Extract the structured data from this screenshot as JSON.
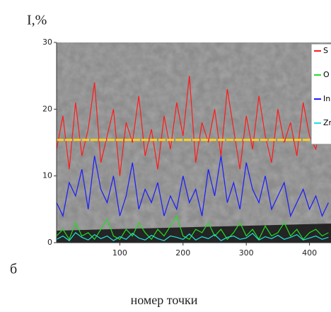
{
  "chart_data": {
    "type": "line",
    "y_label": "I,%",
    "x_label": "номер точки",
    "annotation": "б",
    "x": [
      0,
      10,
      20,
      30,
      40,
      50,
      60,
      70,
      80,
      90,
      100,
      110,
      120,
      130,
      140,
      150,
      160,
      170,
      180,
      190,
      200,
      210,
      220,
      230,
      240,
      250,
      260,
      270,
      280,
      290,
      300,
      310,
      320,
      330,
      340,
      350,
      360,
      370,
      380,
      390,
      400,
      410,
      420,
      430
    ],
    "series": [
      {
        "name": "S",
        "color": "#ff1a1a",
        "values": [
          14,
          19,
          11,
          21,
          13,
          17,
          24,
          12,
          16,
          20,
          10,
          18,
          15,
          22,
          13,
          17,
          11,
          19,
          14,
          21,
          16,
          25,
          12,
          18,
          15,
          20,
          13,
          23,
          17,
          11,
          19,
          14,
          22,
          16,
          12,
          20,
          15,
          18,
          13,
          21,
          16,
          14,
          19,
          15
        ]
      },
      {
        "name": "O",
        "color": "#22dd22",
        "values": [
          1,
          2,
          0.5,
          3,
          1,
          1.5,
          0.5,
          2,
          3.5,
          1,
          0.5,
          2,
          1,
          3,
          1.5,
          0.5,
          2,
          1,
          2.5,
          4,
          1,
          0.5,
          2,
          1.5,
          3,
          1,
          2,
          0.5,
          1.5,
          3,
          1,
          2,
          0.5,
          2.5,
          1,
          1.5,
          3,
          1,
          2,
          0.5,
          1.5,
          2,
          1,
          1.5
        ]
      },
      {
        "name": "In",
        "color": "#1a1aff",
        "values": [
          6,
          4,
          9,
          7,
          11,
          5,
          13,
          8,
          6,
          10,
          4,
          7,
          12,
          5,
          8,
          6,
          9,
          4,
          7,
          5,
          10,
          6,
          8,
          4,
          11,
          7,
          13,
          6,
          9,
          5,
          12,
          8,
          6,
          10,
          5,
          7,
          9,
          4,
          6,
          8,
          5,
          7,
          4,
          6
        ]
      },
      {
        "name": "Zr",
        "color": "#22e0e0",
        "values": [
          0.5,
          1,
          0.3,
          1.5,
          0.8,
          0.4,
          1.2,
          0.6,
          1,
          0.3,
          0.9,
          0.5,
          1.4,
          0.7,
          0.4,
          1.1,
          0.6,
          0.3,
          1,
          0.8,
          0.5,
          1.3,
          0.4,
          0.9,
          0.6,
          1.2,
          0.3,
          0.8,
          1,
          0.5,
          0.7,
          1.4,
          0.4,
          0.9,
          0.6,
          1.1,
          0.5,
          0.8,
          1.2,
          0.4,
          0.7,
          1,
          0.5,
          0.8
        ]
      }
    ],
    "reference_line": {
      "value": 15.4,
      "color": "#ffd21a"
    },
    "xlim": [
      0,
      434
    ],
    "xticks": [
      100,
      200,
      300,
      400
    ],
    "ylim": [
      0,
      30
    ],
    "yticks": [
      0,
      10,
      20,
      30
    ]
  }
}
